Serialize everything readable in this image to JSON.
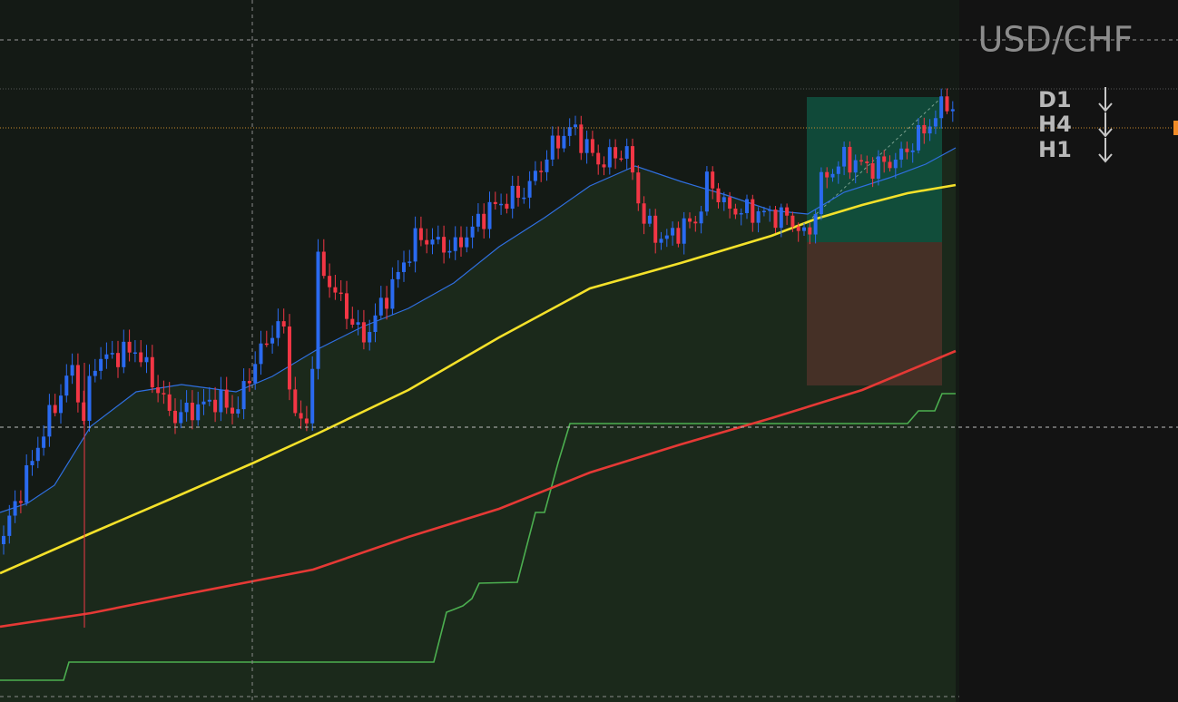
{
  "header": {
    "symbol": "USD/CHF"
  },
  "timeframes": [
    {
      "label": "D1"
    },
    {
      "label": "H4"
    },
    {
      "label": "H1"
    }
  ]
}
